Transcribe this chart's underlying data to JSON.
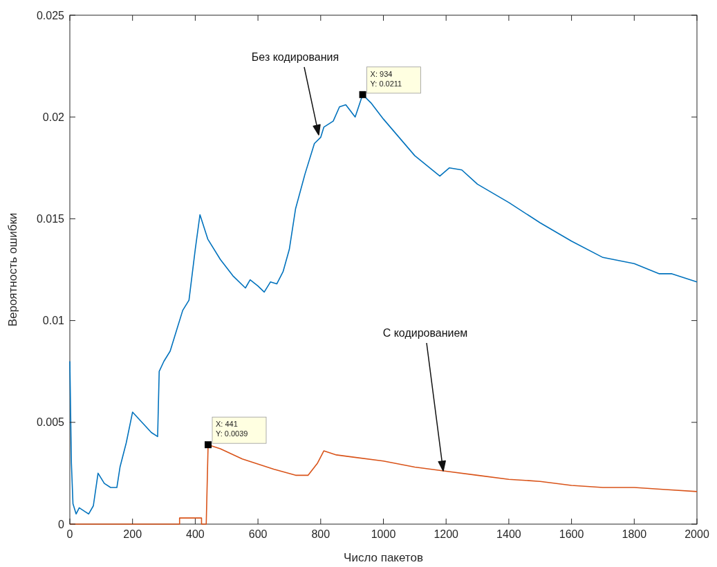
{
  "chart_data": {
    "type": "line",
    "xlabel": "Число пакетов",
    "ylabel": "Вероятность ошибки",
    "xlim": [
      0,
      2000
    ],
    "ylim": [
      0,
      0.025
    ],
    "xticks": [
      0,
      200,
      400,
      600,
      800,
      1000,
      1200,
      1400,
      1600,
      1800,
      2000
    ],
    "yticks": [
      0,
      0.005,
      0.01,
      0.015,
      0.02,
      0.025
    ],
    "grid": false,
    "line_style": "solid",
    "marker": "none",
    "series": [
      {
        "color": "#0072bd",
        "x": [
          0,
          5,
          10,
          20,
          30,
          50,
          60,
          75,
          90,
          110,
          130,
          150,
          160,
          180,
          200,
          230,
          260,
          280,
          285,
          300,
          320,
          340,
          360,
          380,
          400,
          415,
          440,
          480,
          520,
          560,
          575,
          600,
          620,
          640,
          660,
          680,
          700,
          720,
          750,
          780,
          800,
          810,
          840,
          860,
          880,
          910,
          934,
          960,
          1000,
          1050,
          1100,
          1180,
          1210,
          1250,
          1300,
          1400,
          1500,
          1600,
          1700,
          1800,
          1880,
          1920,
          2000
        ],
        "values": [
          0.008,
          0.003,
          0.001,
          0.0005,
          0.0008,
          0.0006,
          0.0005,
          0.0009,
          0.0025,
          0.002,
          0.0018,
          0.0018,
          0.0028,
          0.004,
          0.0055,
          0.005,
          0.0045,
          0.0043,
          0.0075,
          0.008,
          0.0085,
          0.0095,
          0.0105,
          0.011,
          0.0135,
          0.0152,
          0.014,
          0.013,
          0.0122,
          0.0116,
          0.012,
          0.0117,
          0.0114,
          0.0119,
          0.0118,
          0.0124,
          0.0135,
          0.0155,
          0.0172,
          0.0187,
          0.019,
          0.0195,
          0.0198,
          0.0205,
          0.0206,
          0.02,
          0.0211,
          0.0207,
          0.0199,
          0.019,
          0.0181,
          0.0171,
          0.0175,
          0.0174,
          0.0167,
          0.0158,
          0.0148,
          0.0139,
          0.0131,
          0.0128,
          0.0123,
          0.0123,
          0.0119
        ]
      },
      {
        "color": "#d95319",
        "x": [
          0,
          350,
          350,
          420,
          420,
          435,
          441,
          480,
          550,
          650,
          720,
          760,
          790,
          810,
          850,
          900,
          1000,
          1100,
          1200,
          1300,
          1400,
          1500,
          1600,
          1700,
          1800,
          1900,
          2000
        ],
        "values": [
          0,
          0,
          0.0003,
          0.0003,
          0,
          0,
          0.0039,
          0.0037,
          0.0032,
          0.0027,
          0.0024,
          0.0024,
          0.003,
          0.0036,
          0.0034,
          0.0033,
          0.0031,
          0.0028,
          0.0026,
          0.0024,
          0.0022,
          0.0021,
          0.0019,
          0.0018,
          0.0018,
          0.0017,
          0.0016
        ]
      }
    ],
    "annotations": [
      "Без кодирования",
      "С кодированием",
      {
        "text": "X: 934\nY: 0.0211",
        "x": 934,
        "y": 0.0211
      },
      {
        "text": "X: 441\nY: 0.0039",
        "x": 441,
        "y": 0.0039
      }
    ]
  }
}
